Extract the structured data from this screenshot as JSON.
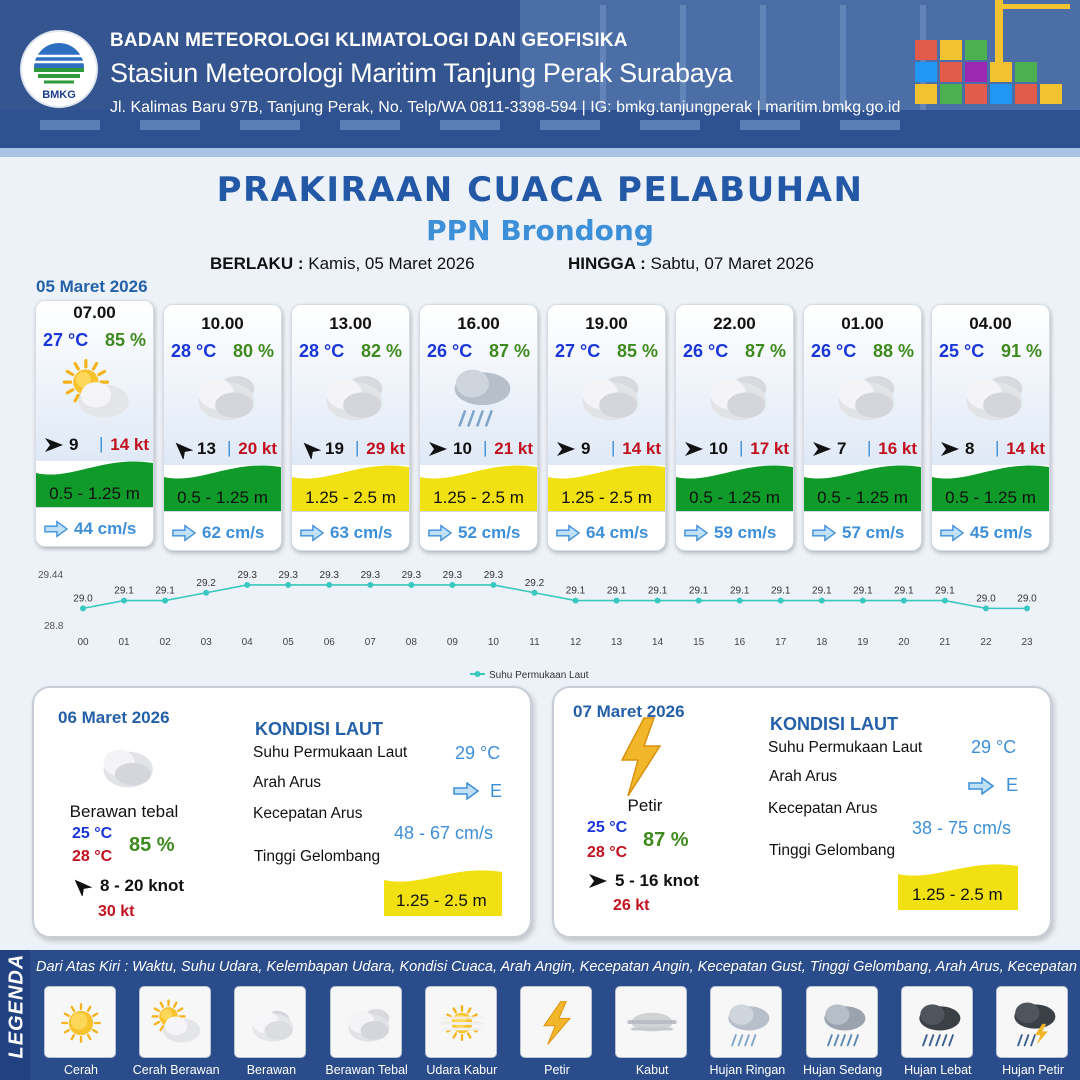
{
  "header": {
    "org": "BADAN METEOROLOGI KLIMATOLOGI DAN GEOFISIKA",
    "station": "Stasiun Meteorologi Maritim Tanjung Perak Surabaya",
    "address": "Jl. Kalimas Baru 97B, Tanjung Perak, No. Telp/WA 0811-3398-594 | IG: bmkg.tanjungperak | maritim.bmkg.go.id",
    "logo_text": "BMKG"
  },
  "title": "PRAKIRAAN CUACA PELABUHAN",
  "subtitle": "PPN Brondong",
  "validity": {
    "from_label": "BERLAKU :",
    "from_value": "Kamis, 05 Maret 2026",
    "to_label": "HINGGA :",
    "to_value": "Sabtu, 07 Maret 2026"
  },
  "forecast_date": "05 Maret 2026",
  "forecasts": [
    {
      "time": "07.00",
      "temp": "27 °C",
      "humidity": "85 %",
      "weather": "cerah-berawan-icon",
      "wind_dir_deg": 0,
      "wind": "9",
      "gust": "14 kt",
      "wave": "0.5 - 1.25 m",
      "wave_level": "low",
      "current": "44 cm/s"
    },
    {
      "time": "10.00",
      "temp": "28 °C",
      "humidity": "80 %",
      "weather": "berawan-tebal-icon",
      "wind_dir_deg": 225,
      "wind": "13",
      "gust": "20 kt",
      "wave": "0.5 - 1.25 m",
      "wave_level": "low",
      "current": "62 cm/s"
    },
    {
      "time": "13.00",
      "temp": "28 °C",
      "humidity": "82 %",
      "weather": "berawan-tebal-icon",
      "wind_dir_deg": 225,
      "wind": "19",
      "gust": "29 kt",
      "wave": "1.25 - 2.5 m",
      "wave_level": "moderate",
      "current": "63 cm/s"
    },
    {
      "time": "16.00",
      "temp": "26 °C",
      "humidity": "87 %",
      "weather": "hujan-ringan-icon",
      "wind_dir_deg": 0,
      "wind": "10",
      "gust": "21 kt",
      "wave": "1.25 - 2.5 m",
      "wave_level": "moderate",
      "current": "52 cm/s"
    },
    {
      "time": "19.00",
      "temp": "27 °C",
      "humidity": "85 %",
      "weather": "berawan-tebal-icon",
      "wind_dir_deg": 0,
      "wind": "9",
      "gust": "14 kt",
      "wave": "1.25 - 2.5 m",
      "wave_level": "moderate",
      "current": "64 cm/s"
    },
    {
      "time": "22.00",
      "temp": "26 °C",
      "humidity": "87 %",
      "weather": "berawan-tebal-icon",
      "wind_dir_deg": 0,
      "wind": "10",
      "gust": "17 kt",
      "wave": "0.5 - 1.25 m",
      "wave_level": "low",
      "current": "59 cm/s"
    },
    {
      "time": "01.00",
      "temp": "26 °C",
      "humidity": "88 %",
      "weather": "berawan-tebal-icon",
      "wind_dir_deg": 0,
      "wind": "7",
      "gust": "16 kt",
      "wave": "0.5 - 1.25 m",
      "wave_level": "low",
      "current": "57 cm/s"
    },
    {
      "time": "04.00",
      "temp": "25 °C",
      "humidity": "91 %",
      "weather": "berawan-tebal-icon",
      "wind_dir_deg": 0,
      "wind": "8",
      "gust": "14 kt",
      "wave": "0.5 - 1.25 m",
      "wave_level": "low",
      "current": "45 cm/s"
    }
  ],
  "chart_data": {
    "type": "line",
    "categories": [
      "00",
      "01",
      "02",
      "03",
      "04",
      "05",
      "06",
      "07",
      "08",
      "09",
      "10",
      "11",
      "12",
      "13",
      "14",
      "15",
      "16",
      "17",
      "18",
      "19",
      "20",
      "21",
      "22",
      "23"
    ],
    "series": [
      {
        "name": "Suhu Permukaan Laut",
        "values": [
          29.0,
          29.1,
          29.1,
          29.2,
          29.3,
          29.3,
          29.3,
          29.3,
          29.3,
          29.3,
          29.3,
          29.2,
          29.1,
          29.1,
          29.1,
          29.1,
          29.1,
          29.1,
          29.1,
          29.1,
          29.1,
          29.1,
          29.0,
          29.0
        ],
        "color": "#38c8c0"
      }
    ],
    "ylim": [
      28.8,
      29.44
    ],
    "y_tick_labels": [
      "29.44",
      "28.8"
    ],
    "legend_position": "bottom-center"
  },
  "days": [
    {
      "date": "06 Maret 2026",
      "weather": "berawan-tebal-icon",
      "condition": "Berawan tebal",
      "temp_min": "25 °C",
      "temp_max": "28 °C",
      "humidity": "85 %",
      "wind_dir_deg": 225,
      "wind": "8  - 20 knot",
      "gust": "30 kt",
      "sea": {
        "heading": "KONDISI LAUT",
        "sst_label": "Suhu Permukaan Laut",
        "sst": "29 °C",
        "current_dir_label": "Arah Arus",
        "current_dir": "E",
        "current_speed_label": "Kecepatan Arus",
        "current_speed": "48  - 67 cm/s",
        "wave_label": "Tinggi Gelombang",
        "wave": "1.25 - 2.5 m"
      }
    },
    {
      "date": "07 Maret 2026",
      "weather": "petir-icon",
      "condition": "Petir",
      "temp_min": "25 °C",
      "temp_max": "28 °C",
      "humidity": "87 %",
      "wind_dir_deg": 0,
      "wind": "5  - 16 knot",
      "gust": "26 kt",
      "sea": {
        "heading": "KONDISI LAUT",
        "sst_label": "Suhu Permukaan Laut",
        "sst": "29 °C",
        "current_dir_label": "Arah Arus",
        "current_dir": "E",
        "current_speed_label": "Kecepatan Arus",
        "current_speed": "38  - 75 cm/s",
        "wave_label": "Tinggi Gelombang",
        "wave": "1.25 - 2.5 m"
      }
    }
  ],
  "legend": {
    "title": "LEGENDA",
    "description": "Dari Atas Kiri : Waktu, Suhu Udara, Kelembapan Udara, Kondisi Cuaca, Arah Angin, Kecepatan Angin, Kecepatan Gust, Tinggi Gelombang, Arah Arus, Kecepatan Arus",
    "items": [
      {
        "label": "Cerah",
        "icon": "cerah-icon"
      },
      {
        "label": "Cerah Berawan",
        "icon": "cerah-berawan-icon"
      },
      {
        "label": "Berawan",
        "icon": "berawan-icon"
      },
      {
        "label": "Berawan Tebal",
        "icon": "berawan-tebal-icon"
      },
      {
        "label": "Udara Kabur",
        "icon": "udara-kabur-icon"
      },
      {
        "label": "Petir",
        "icon": "petir-icon"
      },
      {
        "label": "Kabut",
        "icon": "kabut-icon"
      },
      {
        "label": "Hujan Ringan",
        "icon": "hujan-ringan-icon"
      },
      {
        "label": "Hujan Sedang",
        "icon": "hujan-sedang-icon"
      },
      {
        "label": "Hujan Lebat",
        "icon": "hujan-lebat-icon"
      },
      {
        "label": "Hujan Petir",
        "icon": "hujan-petir-icon"
      }
    ]
  },
  "colors": {
    "wave_low": "#0f9a2a",
    "wave_moderate": "#f1e012",
    "title": "#2358a6",
    "temp": "#1a36d8",
    "humidity": "#3f8a1f",
    "gust": "#c1121f",
    "current": "#3d8fd8"
  }
}
